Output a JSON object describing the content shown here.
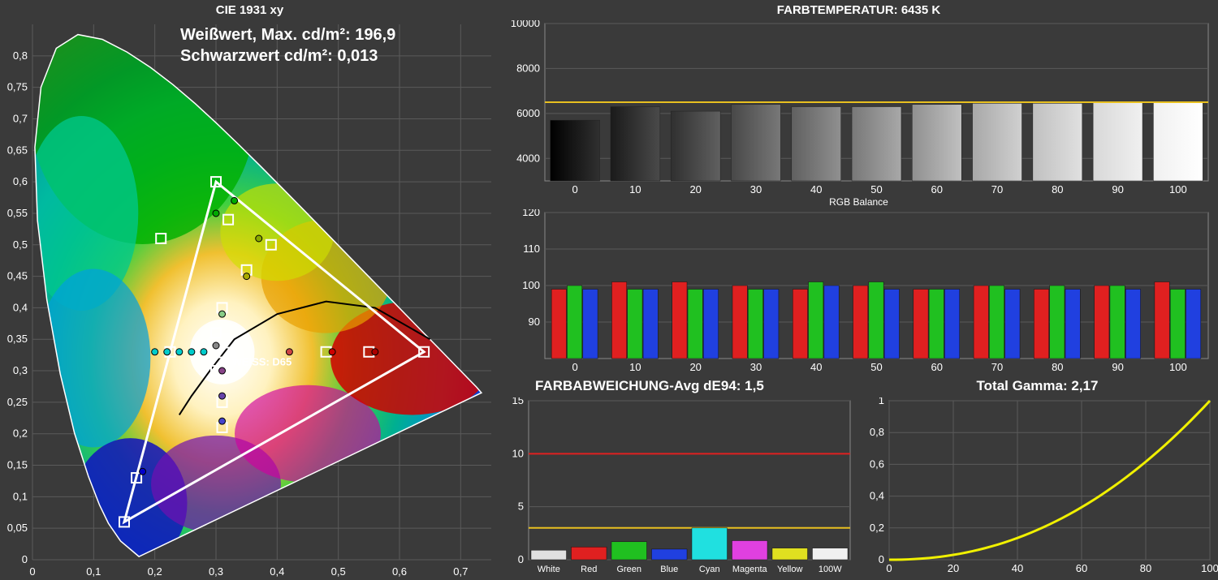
{
  "background_color": "#3a3a3a",
  "cie_chart": {
    "title": "CIE 1931 xy",
    "overlay_line1": "Weißwert, Max. cd/m²: 196,9",
    "overlay_line2": "Schwarzwert cd/m²: 0,013",
    "white_point_label": "WEISS: D65",
    "xlim": [
      0,
      0.75
    ],
    "ylim": [
      0,
      0.85
    ],
    "xticks": [
      0,
      0.1,
      0.2,
      0.3,
      0.4,
      0.5,
      0.6,
      0.7
    ],
    "yticks": [
      0,
      0.05,
      0.1,
      0.15,
      0.2,
      0.25,
      0.3,
      0.35,
      0.4,
      0.45,
      0.5,
      0.55,
      0.6,
      0.65,
      0.7,
      0.75,
      0.8
    ],
    "triangle_vertices": [
      [
        0.64,
        0.33
      ],
      [
        0.3,
        0.6
      ],
      [
        0.15,
        0.06
      ]
    ],
    "white_point": [
      0.3127,
      0.329
    ],
    "locus_color": "#ffffff",
    "triangle_color": "#ffffff",
    "triangle_width": 2,
    "planckian_color": "#000000",
    "square_points": [
      [
        0.64,
        0.33
      ],
      [
        0.3,
        0.6
      ],
      [
        0.15,
        0.06
      ],
      [
        0.3127,
        0.329
      ],
      [
        0.225,
        0.33
      ],
      [
        0.21,
        0.51
      ],
      [
        0.32,
        0.54
      ],
      [
        0.39,
        0.5
      ],
      [
        0.35,
        0.46
      ],
      [
        0.31,
        0.4
      ],
      [
        0.3,
        0.36
      ],
      [
        0.3,
        0.3
      ],
      [
        0.31,
        0.25
      ],
      [
        0.31,
        0.21
      ],
      [
        0.48,
        0.33
      ],
      [
        0.55,
        0.33
      ],
      [
        0.17,
        0.13
      ]
    ],
    "circle_points": [
      [
        0.2,
        0.33,
        "#00cccc"
      ],
      [
        0.22,
        0.33,
        "#00cccc"
      ],
      [
        0.24,
        0.33,
        "#00cccc"
      ],
      [
        0.26,
        0.33,
        "#00cccc"
      ],
      [
        0.28,
        0.33,
        "#00cccc"
      ],
      [
        0.3,
        0.55,
        "#00aa00"
      ],
      [
        0.33,
        0.57,
        "#00aa00"
      ],
      [
        0.37,
        0.51,
        "#88aa00"
      ],
      [
        0.35,
        0.45,
        "#aaaa00"
      ],
      [
        0.31,
        0.39,
        "#88cc88"
      ],
      [
        0.3,
        0.34,
        "#888888"
      ],
      [
        0.31,
        0.3,
        "#884488"
      ],
      [
        0.31,
        0.26,
        "#6644aa"
      ],
      [
        0.31,
        0.22,
        "#4444cc"
      ],
      [
        0.18,
        0.14,
        "#0000cc"
      ],
      [
        0.42,
        0.33,
        "#cc4444"
      ],
      [
        0.49,
        0.33,
        "#cc0000"
      ],
      [
        0.56,
        0.33,
        "#aa0000"
      ]
    ]
  },
  "farbtemp_chart": {
    "title": "FARBTEMPERATUR: 6435 K",
    "ylim": [
      3000,
      10000
    ],
    "yticks": [
      4000,
      6000,
      8000,
      10000
    ],
    "categories": [
      "0",
      "10",
      "20",
      "30",
      "40",
      "50",
      "60",
      "70",
      "80",
      "90",
      "100"
    ],
    "values": [
      5700,
      6300,
      6100,
      6400,
      6300,
      6300,
      6400,
      6450,
      6450,
      6500,
      6500
    ],
    "target_line": 6500,
    "target_color": "#e8c020",
    "bar_colors": [
      [
        "#000000",
        "#303030"
      ],
      [
        "#1a1a1a",
        "#4a4a4a"
      ],
      [
        "#303030",
        "#606060"
      ],
      [
        "#484848",
        "#787878"
      ],
      [
        "#606060",
        "#909090"
      ],
      [
        "#787878",
        "#a8a8a8"
      ],
      [
        "#909090",
        "#c0c0c0"
      ],
      [
        "#a8a8a8",
        "#d0d0d0"
      ],
      [
        "#c0c0c0",
        "#e0e0e0"
      ],
      [
        "#d8d8d8",
        "#f0f0f0"
      ],
      [
        "#f0f0f0",
        "#ffffff"
      ]
    ],
    "grid_color": "#5a5a5a"
  },
  "rgb_balance_chart": {
    "title": "RGB Balance",
    "ylim": [
      80,
      120
    ],
    "yticks": [
      90,
      100,
      110,
      120
    ],
    "categories": [
      "0",
      "10",
      "20",
      "30",
      "40",
      "50",
      "60",
      "70",
      "80",
      "90",
      "100"
    ],
    "colors": {
      "r": "#e02020",
      "g": "#20c020",
      "b": "#2040e0"
    },
    "data": [
      {
        "r": 99,
        "g": 100,
        "b": 99
      },
      {
        "r": 101,
        "g": 99,
        "b": 99
      },
      {
        "r": 101,
        "g": 99,
        "b": 99
      },
      {
        "r": 100,
        "g": 99,
        "b": 99
      },
      {
        "r": 99,
        "g": 101,
        "b": 100
      },
      {
        "r": 100,
        "g": 101,
        "b": 99
      },
      {
        "r": 99,
        "g": 99,
        "b": 99
      },
      {
        "r": 100,
        "g": 100,
        "b": 99
      },
      {
        "r": 99,
        "g": 100,
        "b": 99
      },
      {
        "r": 100,
        "g": 100,
        "b": 99
      },
      {
        "r": 101,
        "g": 99,
        "b": 99
      }
    ],
    "grid_color": "#5a5a5a"
  },
  "farbabw_chart": {
    "title": "FARBABWEICHUNG-Avg dE94: 1,5",
    "ylim": [
      0,
      15
    ],
    "yticks": [
      0,
      5,
      10,
      15
    ],
    "categories": [
      "White",
      "Red",
      "Green",
      "Blue",
      "Cyan",
      "Magenta",
      "Yellow",
      "100W"
    ],
    "values": [
      0.9,
      1.2,
      1.7,
      1.0,
      3.0,
      1.8,
      1.1,
      1.1
    ],
    "bar_colors": [
      "#e0e0e0",
      "#e02020",
      "#20c020",
      "#2040e0",
      "#20e0e0",
      "#e040e0",
      "#e0e020",
      "#f0f0f0"
    ],
    "ref_lines": [
      {
        "y": 3,
        "color": "#e8c020"
      },
      {
        "y": 10,
        "color": "#e02020"
      }
    ],
    "grid_color": "#5a5a5a"
  },
  "gamma_chart": {
    "title": "Total Gamma: 2,17",
    "xlim": [
      0,
      100
    ],
    "ylim": [
      0,
      1
    ],
    "xticks": [
      0,
      20,
      40,
      60,
      80,
      100
    ],
    "yticks": [
      0,
      0.2,
      0.4,
      0.6,
      0.8,
      1
    ],
    "gamma": 2.17,
    "line_color": "#f0f000",
    "line_width": 2,
    "grid_color": "#5a5a5a"
  }
}
